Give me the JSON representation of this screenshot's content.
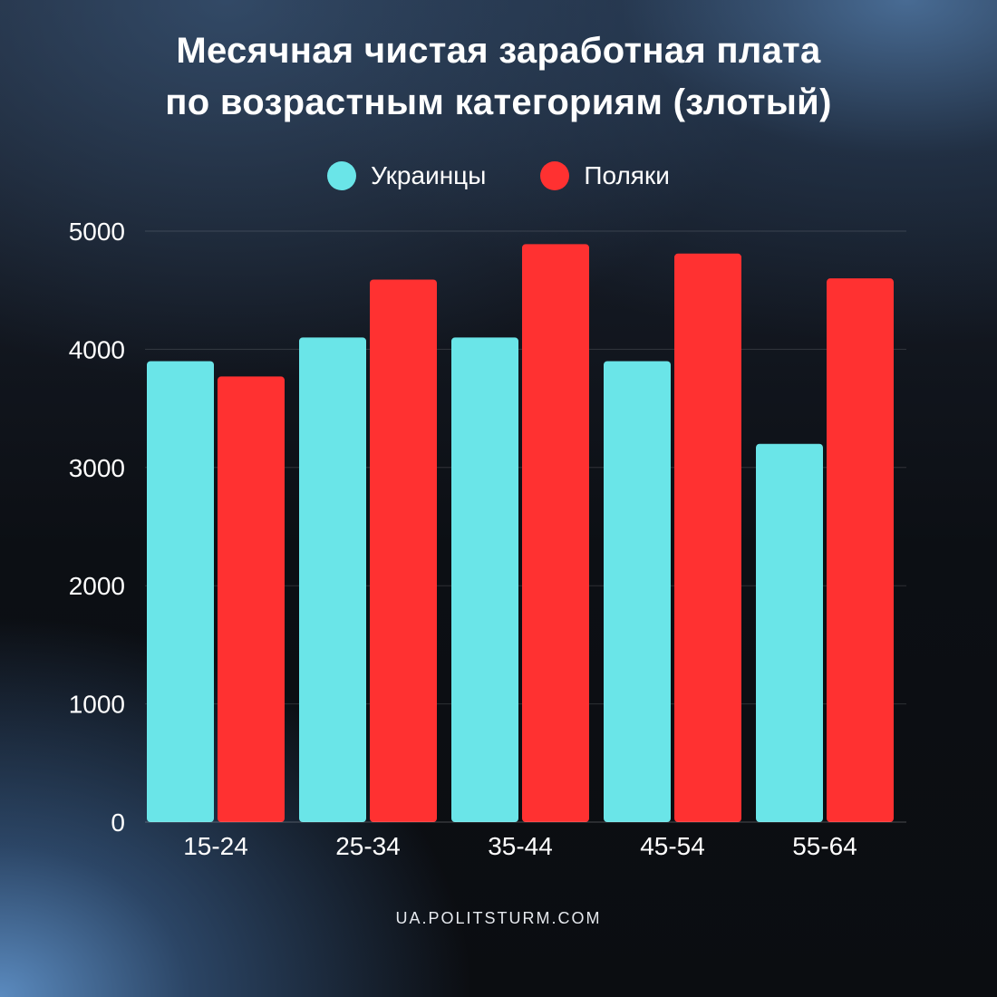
{
  "chart_data": {
    "type": "bar",
    "title_lines": [
      "Месячная чистая заработная плата",
      "по возрастным категориям (злотый)"
    ],
    "xlabel": "",
    "ylabel": "",
    "categories": [
      "15-24",
      "25-34",
      "35-44",
      "45-54",
      "55-64"
    ],
    "series": [
      {
        "name": "Украинцы",
        "color": "#6ae5e8",
        "values": [
          3900,
          4100,
          4100,
          3900,
          3200
        ]
      },
      {
        "name": "Поляки",
        "color": "#ff3131",
        "values": [
          3770,
          4590,
          4890,
          4810,
          4600
        ]
      }
    ],
    "ylim": [
      0,
      5000
    ],
    "yticks": [
      0,
      1000,
      2000,
      3000,
      4000,
      5000
    ],
    "grid": true,
    "legend_position": "top-center"
  },
  "source": "UA.POLITSTURM.COM"
}
